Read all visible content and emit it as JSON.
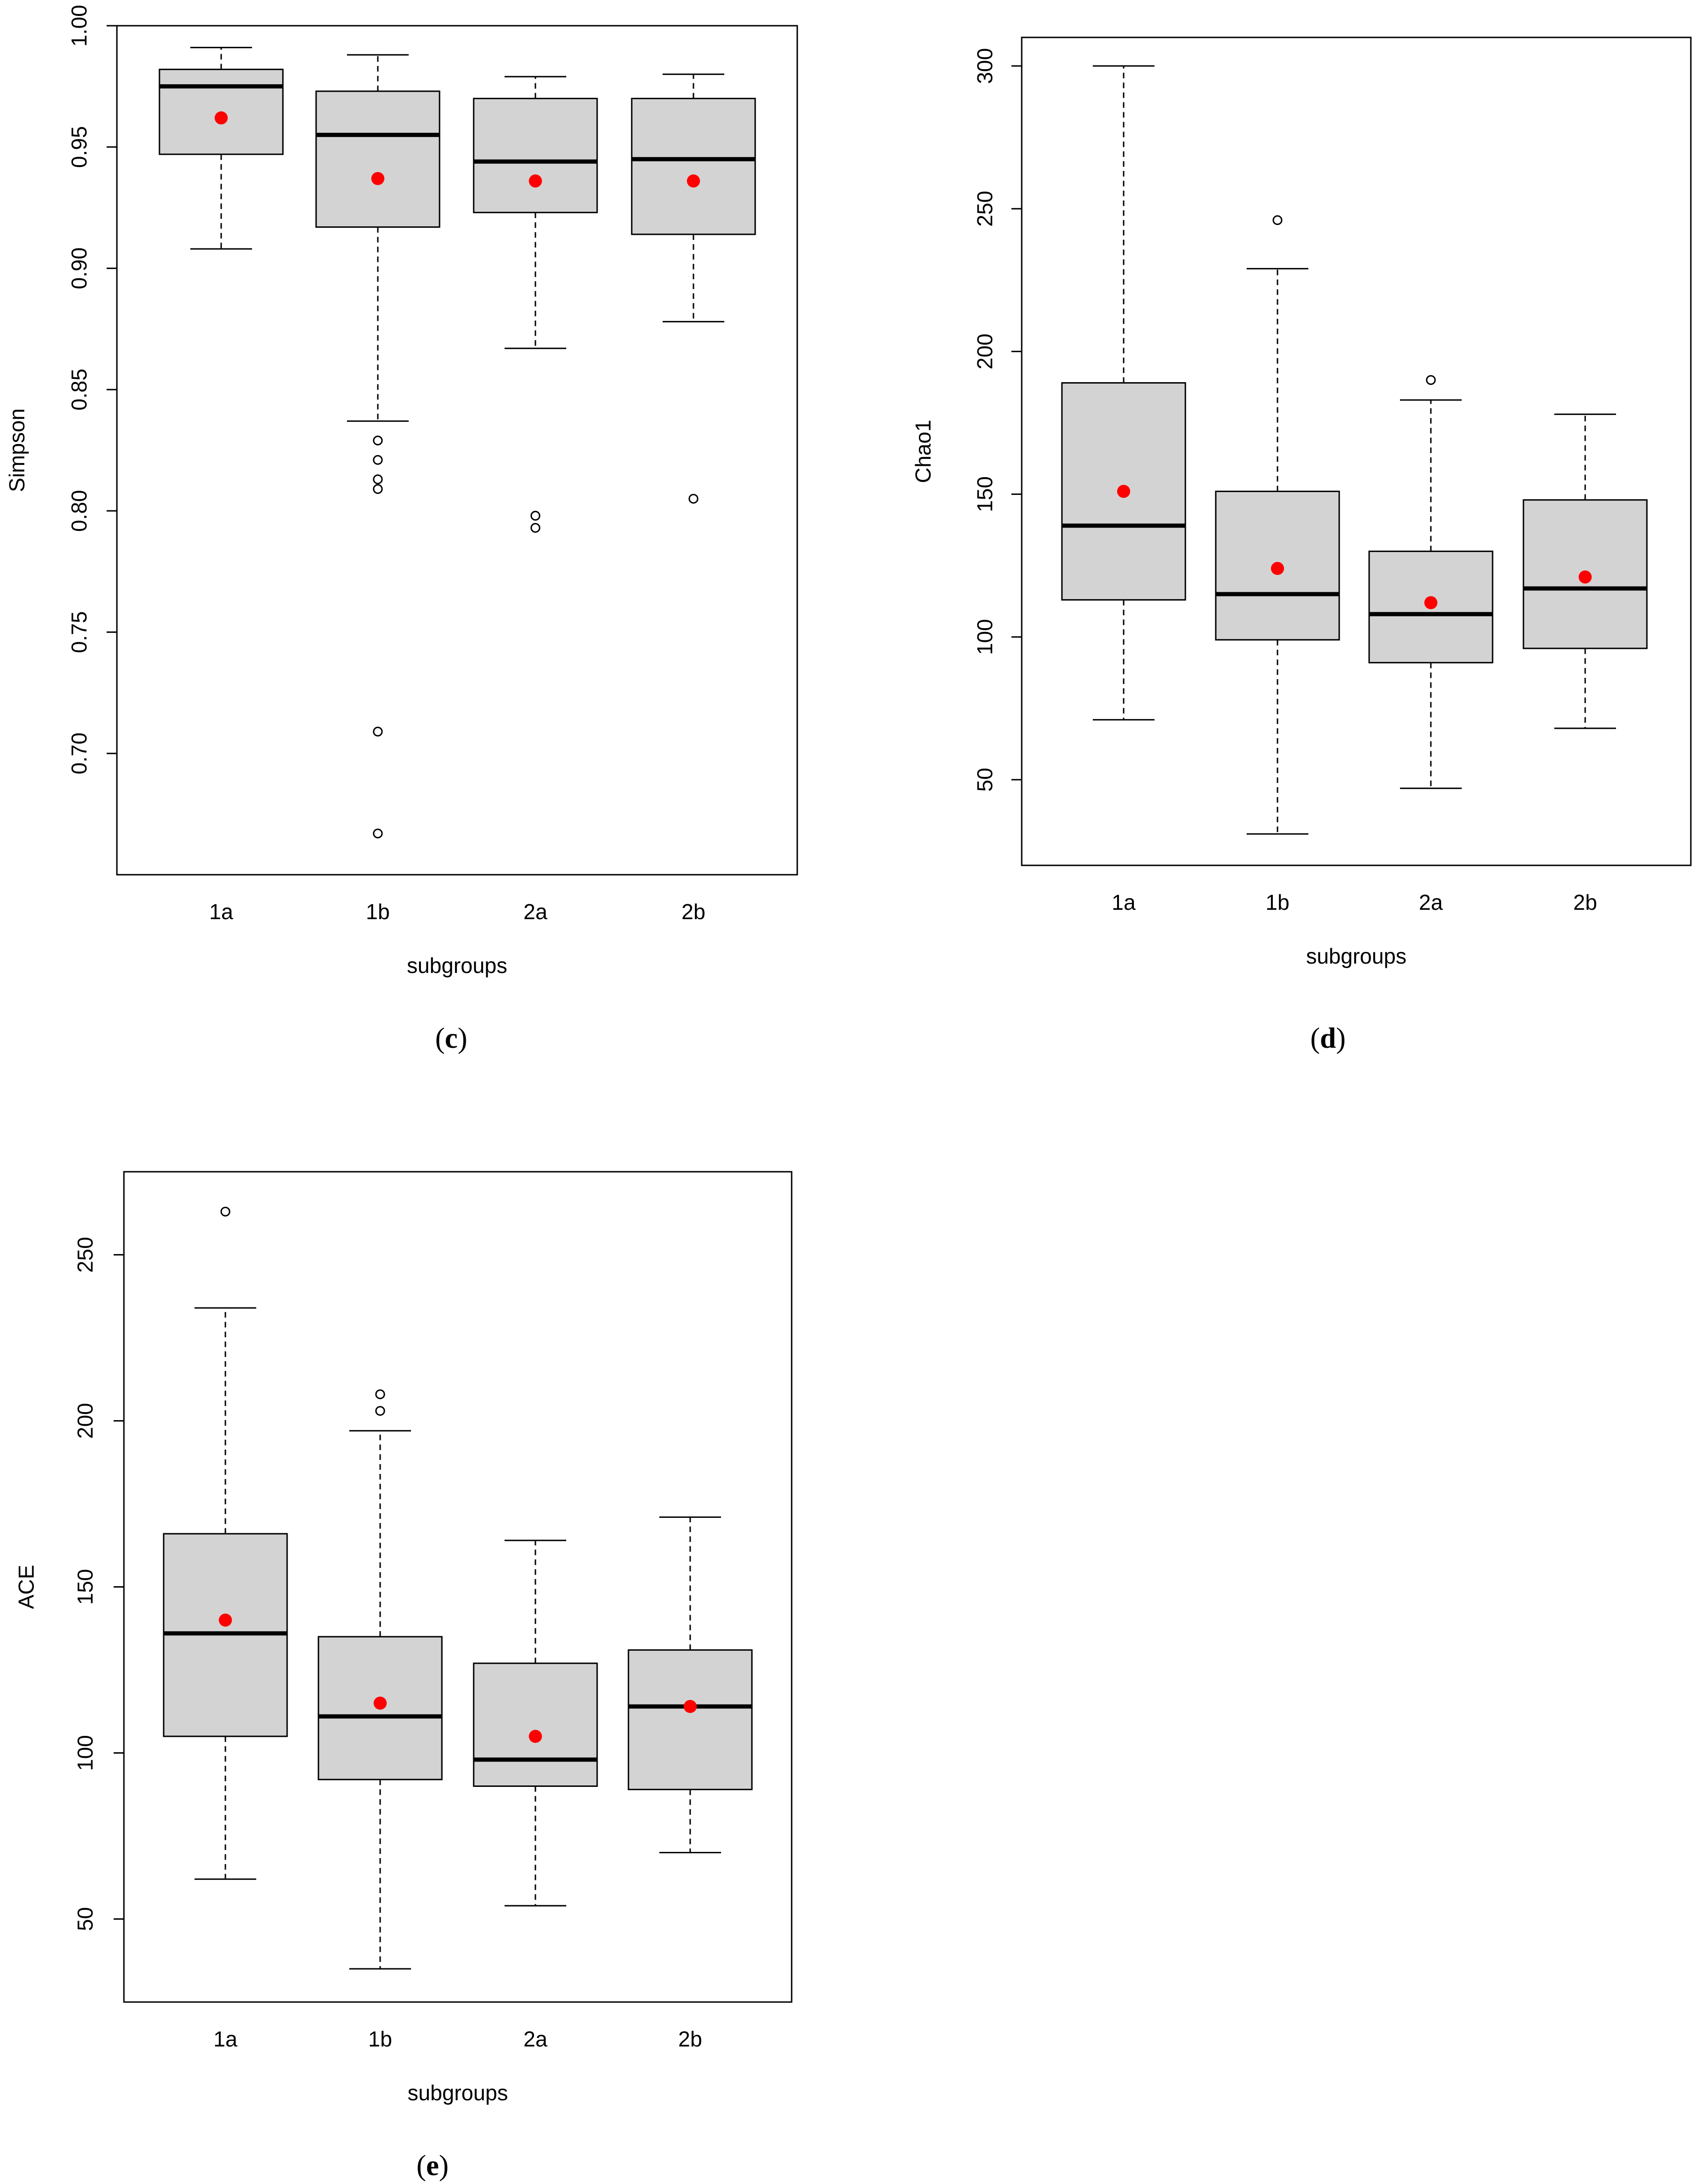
{
  "chart_data": [
    {
      "type": "boxplot",
      "panel": "c",
      "ylabel": "Simpson",
      "xlabel": "subgroups",
      "ylim": [
        0.65,
        1.0
      ],
      "yticks": [
        0.7,
        0.75,
        0.8,
        0.85,
        0.9,
        0.95,
        1.0
      ],
      "ytick_labels": [
        "0.70",
        "0.75",
        "0.80",
        "0.85",
        "0.90",
        "0.95",
        "1.00"
      ],
      "categories": [
        "1a",
        "1b",
        "2a",
        "2b"
      ],
      "boxes": [
        {
          "whisker_low": 0.908,
          "q1": 0.947,
          "median": 0.975,
          "q3": 0.982,
          "whisker_high": 0.991,
          "mean": 0.962,
          "outliers": []
        },
        {
          "whisker_low": 0.837,
          "q1": 0.917,
          "median": 0.955,
          "q3": 0.973,
          "whisker_high": 0.988,
          "mean": 0.937,
          "outliers": [
            0.829,
            0.821,
            0.813,
            0.809,
            0.709,
            0.667
          ]
        },
        {
          "whisker_low": 0.867,
          "q1": 0.923,
          "median": 0.944,
          "q3": 0.97,
          "whisker_high": 0.979,
          "mean": 0.936,
          "outliers": [
            0.798,
            0.793
          ]
        },
        {
          "whisker_low": 0.878,
          "q1": 0.914,
          "median": 0.945,
          "q3": 0.97,
          "whisker_high": 0.98,
          "mean": 0.936,
          "outliers": [
            0.805
          ]
        }
      ],
      "label_open": "(",
      "label_letter": "c",
      "label_close": ")"
    },
    {
      "type": "boxplot",
      "panel": "d",
      "ylabel": "Chao1",
      "xlabel": "subgroups",
      "ylim": [
        20,
        310
      ],
      "yticks": [
        50,
        100,
        150,
        200,
        250,
        300
      ],
      "ytick_labels": [
        "50",
        "100",
        "150",
        "200",
        "250",
        "300"
      ],
      "categories": [
        "1a",
        "1b",
        "2a",
        "2b"
      ],
      "boxes": [
        {
          "whisker_low": 71,
          "q1": 113,
          "median": 139,
          "q3": 189,
          "whisker_high": 300,
          "mean": 151,
          "outliers": []
        },
        {
          "whisker_low": 31,
          "q1": 99,
          "median": 115,
          "q3": 151,
          "whisker_high": 229,
          "mean": 124,
          "outliers": [
            246
          ]
        },
        {
          "whisker_low": 47,
          "q1": 91,
          "median": 108,
          "q3": 130,
          "whisker_high": 183,
          "mean": 112,
          "outliers": [
            190
          ]
        },
        {
          "whisker_low": 68,
          "q1": 96,
          "median": 117,
          "q3": 148,
          "whisker_high": 178,
          "mean": 121,
          "outliers": []
        }
      ],
      "label_open": "(",
      "label_letter": "d",
      "label_close": ")"
    },
    {
      "type": "boxplot",
      "panel": "e",
      "ylabel": "ACE",
      "xlabel": "subgroups",
      "ylim": [
        25,
        275
      ],
      "yticks": [
        50,
        100,
        150,
        200,
        250
      ],
      "ytick_labels": [
        "50",
        "100",
        "150",
        "200",
        "250"
      ],
      "categories": [
        "1a",
        "1b",
        "2a",
        "2b"
      ],
      "boxes": [
        {
          "whisker_low": 62,
          "q1": 105,
          "median": 136,
          "q3": 166,
          "whisker_high": 234,
          "mean": 140,
          "outliers": [
            263
          ]
        },
        {
          "whisker_low": 35,
          "q1": 92,
          "median": 111,
          "q3": 135,
          "whisker_high": 197,
          "mean": 115,
          "outliers": [
            203,
            208
          ]
        },
        {
          "whisker_low": 54,
          "q1": 90,
          "median": 98,
          "q3": 127,
          "whisker_high": 164,
          "mean": 105,
          "outliers": []
        },
        {
          "whisker_low": 70,
          "q1": 89,
          "median": 114,
          "q3": 131,
          "whisker_high": 171,
          "mean": 114,
          "outliers": []
        }
      ],
      "label_open": "(",
      "label_letter": "e",
      "label_close": ")"
    }
  ],
  "colors": {
    "box_fill": "#d3d3d3",
    "mean_point": "#ff0000",
    "line": "#000000"
  }
}
